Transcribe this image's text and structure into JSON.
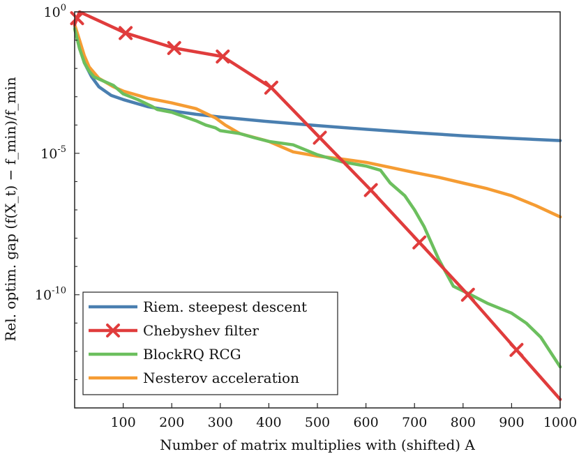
{
  "chart_data": {
    "type": "line",
    "title": "",
    "xlabel": "Number of matrix multiplies with (shifted) A",
    "ylabel": "Rel. optim. gap (f(X_t) − f_min)/f_min",
    "xlim": [
      0,
      1000
    ],
    "ylim_log10": [
      -14,
      0
    ],
    "y_scale": "log",
    "grid": false,
    "legend_position": "bottom-left",
    "x_ticks": [
      100,
      200,
      300,
      400,
      500,
      600,
      700,
      800,
      900,
      1000
    ],
    "x_tick_labels": [
      "100",
      "200",
      "300",
      "400",
      "500",
      "600",
      "700",
      "800",
      "900",
      "1000"
    ],
    "y_ticks_log10": [
      0,
      -5,
      -10
    ],
    "y_tick_labels": [
      {
        "base": "10",
        "exp": "0"
      },
      {
        "base": "10",
        "exp": "-5"
      },
      {
        "base": "10",
        "exp": "-10"
      }
    ],
    "series": [
      {
        "name": "Riem. steepest descent",
        "color": "#4a7fb0",
        "marker": "none",
        "x": [
          0,
          10,
          20,
          35,
          50,
          75,
          100,
          150,
          200,
          250,
          300,
          400,
          500,
          600,
          700,
          800,
          900,
          1000
        ],
        "log10y": [
          -0.5,
          -1.2,
          -1.8,
          -2.3,
          -2.65,
          -2.95,
          -3.1,
          -3.35,
          -3.5,
          -3.62,
          -3.72,
          -3.88,
          -4.02,
          -4.15,
          -4.27,
          -4.38,
          -4.47,
          -4.55
        ]
      },
      {
        "name": "Chebyshev filter",
        "color": "#e03c3c",
        "marker": "x",
        "x": [
          0,
          10,
          105,
          205,
          305,
          405,
          505,
          610,
          710,
          810,
          910,
          1000
        ],
        "log10y": [
          -0.45,
          0.0,
          -0.75,
          -1.28,
          -1.58,
          -2.68,
          -4.45,
          -6.3,
          -8.15,
          -10.0,
          -11.95,
          -13.7
        ],
        "marker_x": [
          5,
          105,
          205,
          305,
          405,
          505,
          610,
          710,
          810,
          910
        ]
      },
      {
        "name": "BlockRQ RCG",
        "color": "#6cbf5e",
        "marker": "none",
        "x": [
          0,
          10,
          20,
          30,
          40,
          60,
          80,
          90,
          100,
          130,
          160,
          170,
          200,
          250,
          270,
          290,
          300,
          340,
          370,
          400,
          450,
          500,
          550,
          600,
          630,
          650,
          680,
          700,
          720,
          750,
          780,
          810,
          850,
          900,
          930,
          960,
          1000
        ],
        "log10y": [
          -0.6,
          -1.3,
          -1.8,
          -2.1,
          -2.3,
          -2.45,
          -2.6,
          -2.75,
          -2.9,
          -3.1,
          -3.35,
          -3.45,
          -3.55,
          -3.85,
          -4.0,
          -4.1,
          -4.2,
          -4.3,
          -4.45,
          -4.58,
          -4.7,
          -5.05,
          -5.3,
          -5.45,
          -5.6,
          -6.05,
          -6.5,
          -7.0,
          -7.6,
          -8.75,
          -9.7,
          -9.95,
          -10.3,
          -10.65,
          -11.0,
          -11.5,
          -12.55
        ]
      },
      {
        "name": "Nesterov acceleration",
        "color": "#f59c33",
        "marker": "none",
        "x": [
          0,
          10,
          20,
          30,
          40,
          50,
          80,
          100,
          150,
          200,
          250,
          290,
          310,
          340,
          400,
          450,
          500,
          550,
          600,
          650,
          700,
          750,
          800,
          850,
          900,
          950,
          1000
        ],
        "log10y": [
          -0.45,
          -1.0,
          -1.55,
          -1.95,
          -2.15,
          -2.35,
          -2.65,
          -2.8,
          -3.05,
          -3.22,
          -3.42,
          -3.75,
          -4.0,
          -4.3,
          -4.58,
          -4.95,
          -5.1,
          -5.2,
          -5.32,
          -5.5,
          -5.68,
          -5.85,
          -6.05,
          -6.25,
          -6.5,
          -6.85,
          -7.25
        ]
      }
    ]
  }
}
